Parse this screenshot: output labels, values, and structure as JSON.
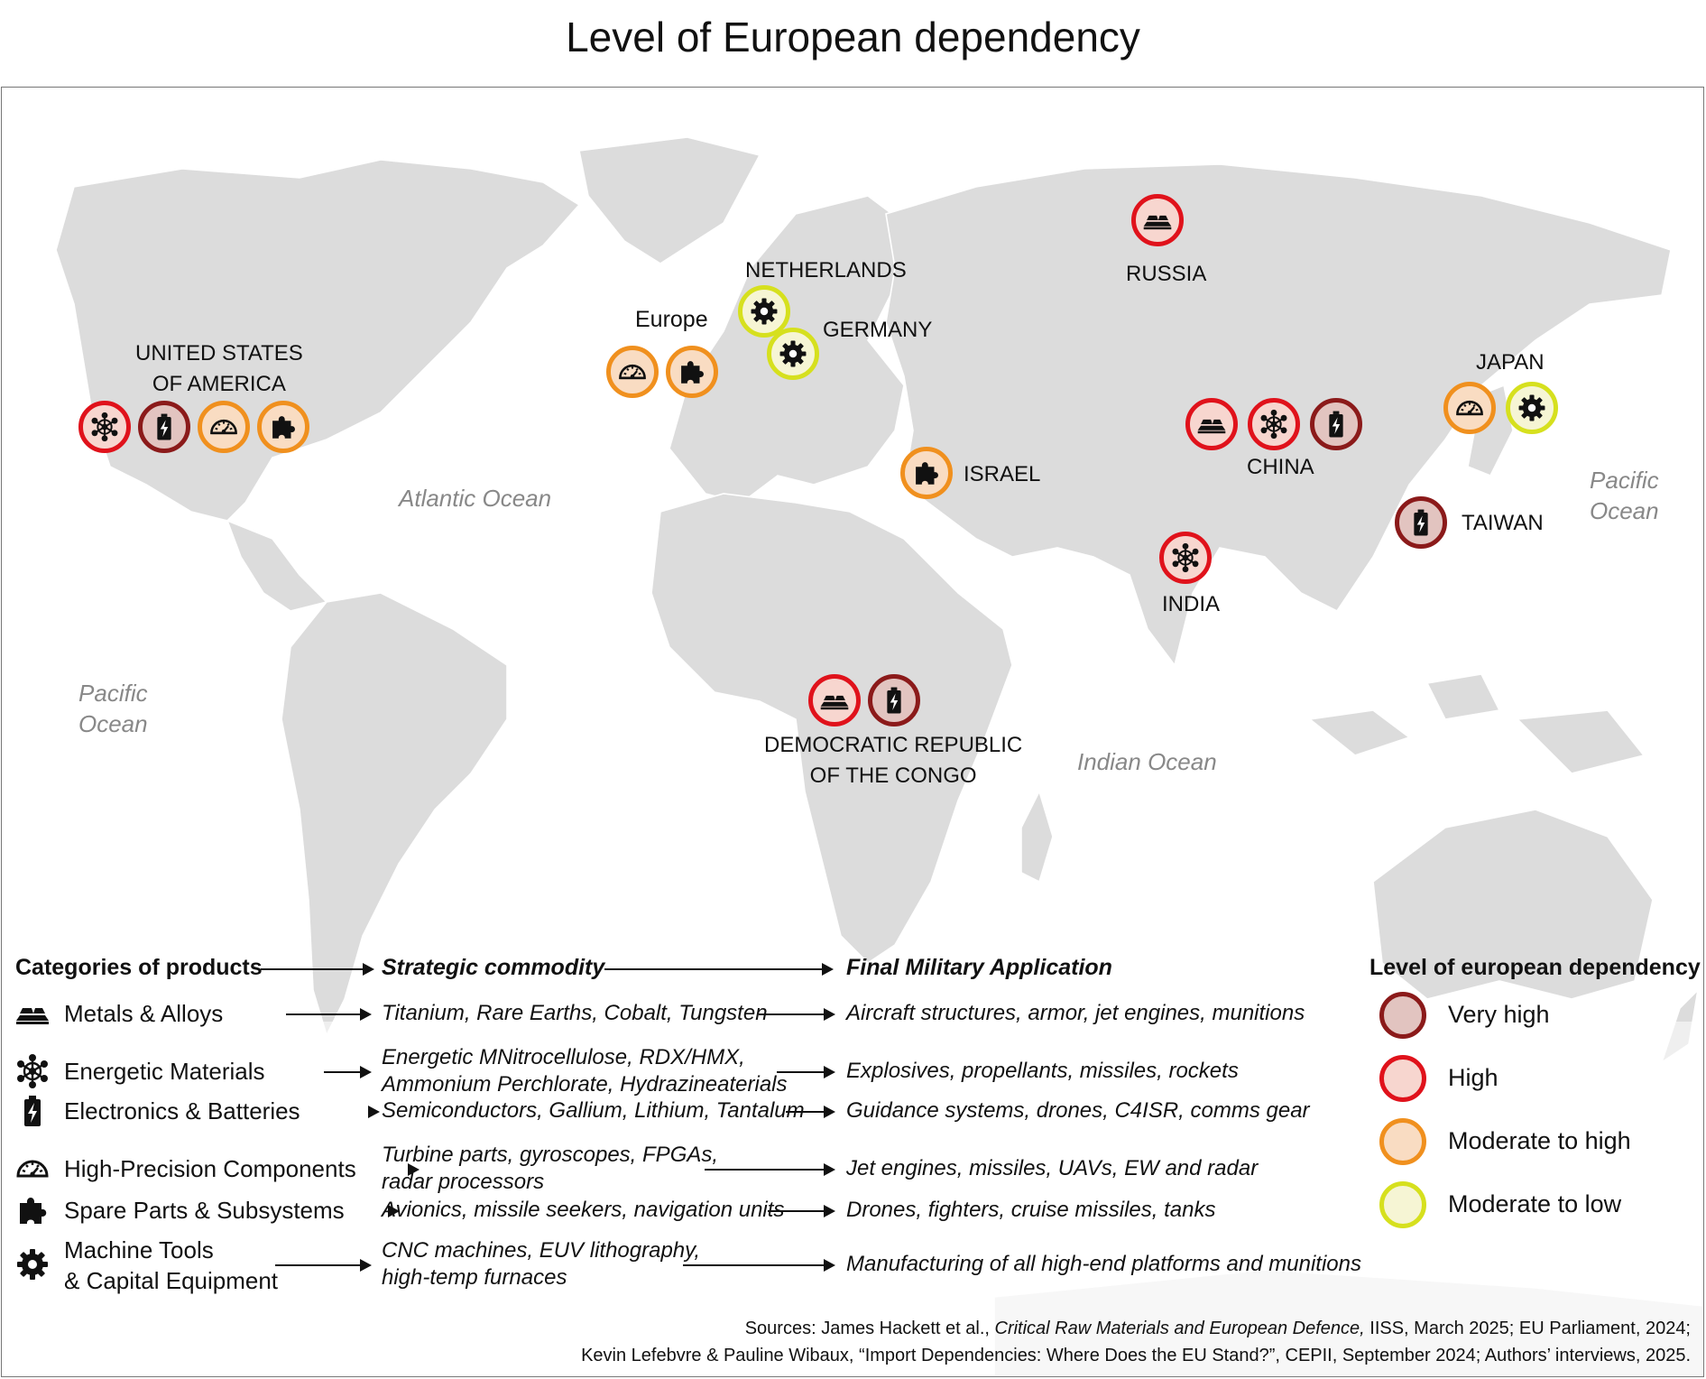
{
  "title": "Level of European dependency",
  "oceans": {
    "atlantic": "Atlantic Ocean",
    "pacific_west": [
      "Pacific",
      "Ocean"
    ],
    "pacific_east": [
      "Pacific",
      "Ocean"
    ],
    "indian": "Indian Ocean"
  },
  "countries": {
    "usa": [
      "UNITED STATES",
      "OF AMERICA"
    ],
    "europe": "Europe",
    "netherlands": "NETHERLANDS",
    "germany": "GERMANY",
    "russia": "RUSSIA",
    "japan": "JAPAN",
    "china": "CHINA",
    "israel": "ISRAEL",
    "taiwan": "TAIWAN",
    "india": "INDIA",
    "drc": [
      "DEMOCRATIC REPUBLIC",
      "OF THE CONGO"
    ]
  },
  "markers": [
    {
      "country": "usa",
      "category": "energetic-materials",
      "level": "high"
    },
    {
      "country": "usa",
      "category": "electronics-batteries",
      "level": "very_high"
    },
    {
      "country": "usa",
      "category": "high-precision-components",
      "level": "moderate_high"
    },
    {
      "country": "usa",
      "category": "spare-parts-subsystems",
      "level": "moderate_high"
    },
    {
      "country": "europe",
      "category": "high-precision-components",
      "level": "moderate_high"
    },
    {
      "country": "europe",
      "category": "spare-parts-subsystems",
      "level": "moderate_high"
    },
    {
      "country": "netherlands",
      "category": "machine-tools",
      "level": "moderate_low"
    },
    {
      "country": "germany",
      "category": "machine-tools",
      "level": "moderate_low"
    },
    {
      "country": "russia",
      "category": "metals-alloys",
      "level": "high"
    },
    {
      "country": "israel",
      "category": "spare-parts-subsystems",
      "level": "moderate_high"
    },
    {
      "country": "china",
      "category": "metals-alloys",
      "level": "high"
    },
    {
      "country": "china",
      "category": "energetic-materials",
      "level": "high"
    },
    {
      "country": "china",
      "category": "electronics-batteries",
      "level": "very_high"
    },
    {
      "country": "japan",
      "category": "high-precision-components",
      "level": "moderate_high"
    },
    {
      "country": "japan",
      "category": "machine-tools",
      "level": "moderate_low"
    },
    {
      "country": "taiwan",
      "category": "electronics-batteries",
      "level": "very_high"
    },
    {
      "country": "india",
      "category": "energetic-materials",
      "level": "high"
    },
    {
      "country": "drc",
      "category": "metals-alloys",
      "level": "high"
    },
    {
      "country": "drc",
      "category": "electronics-batteries",
      "level": "very_high"
    }
  ],
  "table": {
    "headers": {
      "categories": "Categories of products",
      "commodity": "Strategic commodity",
      "application": "Final Military Application"
    },
    "rows": [
      {
        "icon": "metals-alloys-icon",
        "category": [
          "Metals & Alloys"
        ],
        "commodity": [
          "Titanium, Rare Earths, Cobalt, Tungsten"
        ],
        "application": "Aircraft structures, armor, jet engines, munitions"
      },
      {
        "icon": "energetic-materials-icon",
        "category": [
          "Energetic Materials"
        ],
        "commodity": [
          "Energetic MNitrocellulose, RDX/HMX,",
          "Ammonium Perchlorate, Hydrazineaterials"
        ],
        "application": "Explosives, propellants, missiles, rockets"
      },
      {
        "icon": "battery-icon",
        "category": [
          "Electronics & Batteries"
        ],
        "commodity": [
          "Semiconductors, Gallium, Lithium, Tantalum"
        ],
        "application": "Guidance systems, drones, C4ISR, comms gear"
      },
      {
        "icon": "gauge-icon",
        "category": [
          "High-Precision Components"
        ],
        "commodity": [
          "Turbine parts, gyroscopes, FPGAs,",
          "radar processors"
        ],
        "application": "Jet engines, missiles, UAVs, EW and radar"
      },
      {
        "icon": "puzzle-icon",
        "category": [
          "Spare Parts & Subsystems"
        ],
        "commodity": [
          "Avionics, missile seekers, navigation units"
        ],
        "application": "Drones, fighters, cruise missiles, tanks"
      },
      {
        "icon": "gear-icon",
        "category": [
          "Machine Tools",
          "& Capital Equipment"
        ],
        "commodity": [
          "CNC machines, EUV lithography,",
          "high-temp furnaces"
        ],
        "application": "Manufacturing of all high-end platforms and munitions"
      }
    ]
  },
  "legend": {
    "title": "Level of european dependency",
    "items": [
      {
        "key": "very_high",
        "label": "Very high",
        "border": "#8b1a1a",
        "fill": "#e2c4c0"
      },
      {
        "key": "high",
        "label": "High",
        "border": "#e0121b",
        "fill": "#f7d6cf"
      },
      {
        "key": "moderate_high",
        "label": "Moderate to high",
        "border": "#f0901e",
        "fill": "#f9dcc2"
      },
      {
        "key": "moderate_low",
        "label": "Moderate to low",
        "border": "#d6e01e",
        "fill": "#f6f5d4"
      }
    ]
  },
  "sources": {
    "line1_pre": "Sources: James Hackett et al., ",
    "line1_italic": "Critical Raw Materials and European Defence,",
    "line1_post": " IISS, March 2025; EU Parliament, 2024;",
    "line2": "Kevin Lefebvre & Pauline Wibaux, “Import Dependencies: Where Does the EU Stand?”, CEPII, September 2024; Authors’ interviews, 2025."
  }
}
